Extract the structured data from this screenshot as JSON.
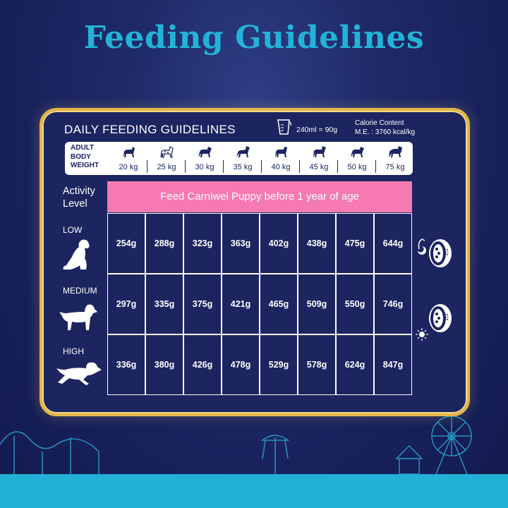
{
  "title": "Feeding Guidelines",
  "card": {
    "heading": "DAILY FEEDING GUIDELINES",
    "cup_note": "240ml = 90g",
    "calorie_line1": "Calorie Content",
    "calorie_line2": "M.E. : 3760 kcal/kg"
  },
  "weight_label": [
    "ADULT",
    "BODY",
    "WEIGHT"
  ],
  "weights": [
    "20 kg",
    "25 kg",
    "30 kg",
    "35 kg",
    "40 kg",
    "45 kg",
    "50 kg",
    "75 kg"
  ],
  "activity_label": [
    "Activity",
    "Level"
  ],
  "banner": "Feed Carniwel Puppy before 1 year of age",
  "levels": [
    {
      "name": "LOW",
      "values": [
        "254g",
        "288g",
        "323g",
        "363g",
        "402g",
        "438g",
        "475g",
        "644g"
      ]
    },
    {
      "name": "MEDIUM",
      "values": [
        "297g",
        "335g",
        "375g",
        "421g",
        "465g",
        "509g",
        "550g",
        "746g"
      ]
    },
    {
      "name": "HIGH",
      "values": [
        "336g",
        "380g",
        "426g",
        "478g",
        "529g",
        "578g",
        "624g",
        "847g"
      ]
    }
  ],
  "bowls": [
    {
      "fraction": "1/2",
      "icon": "moon-icon"
    },
    {
      "fraction": "1/2",
      "icon": "sun-icon"
    }
  ],
  "colors": {
    "navy": "#1c2560",
    "pink": "#f47ab1",
    "gold": "#e4b64a",
    "teal": "#21b1d5",
    "title": "#23b3d8"
  }
}
